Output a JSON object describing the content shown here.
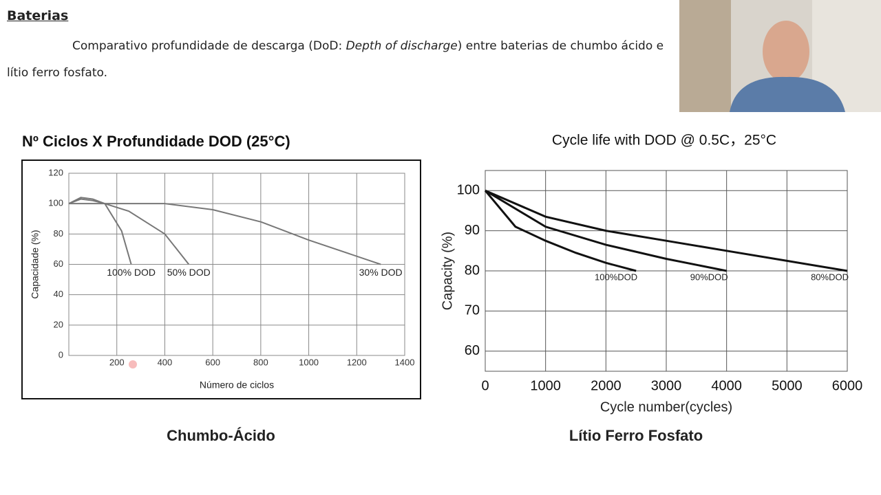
{
  "header": {
    "title": "Baterias",
    "intro": "Comparativo profundidade de descarga (DoD: ",
    "intro_italic": "Depth of discharge",
    "intro_end": ") entre baterias de chumbo ácido e lítio ferro fosfato."
  },
  "chart_data": [
    {
      "type": "line",
      "title": "Nº Ciclos X Profundidade DOD (25°C)",
      "caption": "Chumbo-Ácido",
      "x_label": "Número de ciclos",
      "y_label": "Capacidade (%)",
      "xlim": [
        0,
        1400
      ],
      "xticks": [
        200,
        400,
        600,
        800,
        1000,
        1200,
        1400
      ],
      "ylim": [
        0,
        120
      ],
      "yticks": [
        0,
        20,
        40,
        60,
        80,
        100,
        120
      ],
      "grid": true,
      "series": [
        {
          "name": "100% DOD",
          "color": "#777777",
          "x": [
            0,
            50,
            100,
            150,
            220,
            260
          ],
          "values": [
            100,
            104,
            103,
            100,
            82,
            60
          ]
        },
        {
          "name": "50% DOD",
          "color": "#777777",
          "x": [
            0,
            50,
            100,
            150,
            250,
            400,
            500
          ],
          "values": [
            100,
            103,
            102,
            100,
            95,
            80,
            60
          ]
        },
        {
          "name": "30% DOD",
          "color": "#777777",
          "x": [
            0,
            400,
            600,
            800,
            1000,
            1300
          ],
          "values": [
            100,
            100,
            96,
            88,
            76,
            60
          ]
        }
      ]
    },
    {
      "type": "line",
      "title": "Cycle life with DOD @ 0.5C，25°C",
      "caption": "Lítio Ferro Fosfato",
      "x_label": "Cycle number(cycles)",
      "y_label": "Capacity (%)",
      "xlim": [
        0,
        6000
      ],
      "xticks": [
        0,
        1000,
        2000,
        3000,
        4000,
        5000,
        6000
      ],
      "ylim": [
        55,
        105
      ],
      "yticks": [
        60,
        70,
        80,
        90,
        100
      ],
      "grid": true,
      "series": [
        {
          "name": "100%DOD",
          "color": "#111111",
          "x": [
            0,
            500,
            1000,
            1500,
            2000,
            2500
          ],
          "values": [
            100,
            91,
            87.5,
            84.5,
            82,
            80
          ]
        },
        {
          "name": "90%DOD",
          "color": "#111111",
          "x": [
            0,
            1000,
            2000,
            3000,
            4000
          ],
          "values": [
            100,
            91,
            86.5,
            83,
            80
          ]
        },
        {
          "name": "80%DOD",
          "color": "#111111",
          "x": [
            0,
            1000,
            2000,
            3000,
            4000,
            5000,
            6000
          ],
          "values": [
            100,
            93.5,
            90,
            87.5,
            85,
            82.5,
            80
          ]
        }
      ]
    }
  ]
}
